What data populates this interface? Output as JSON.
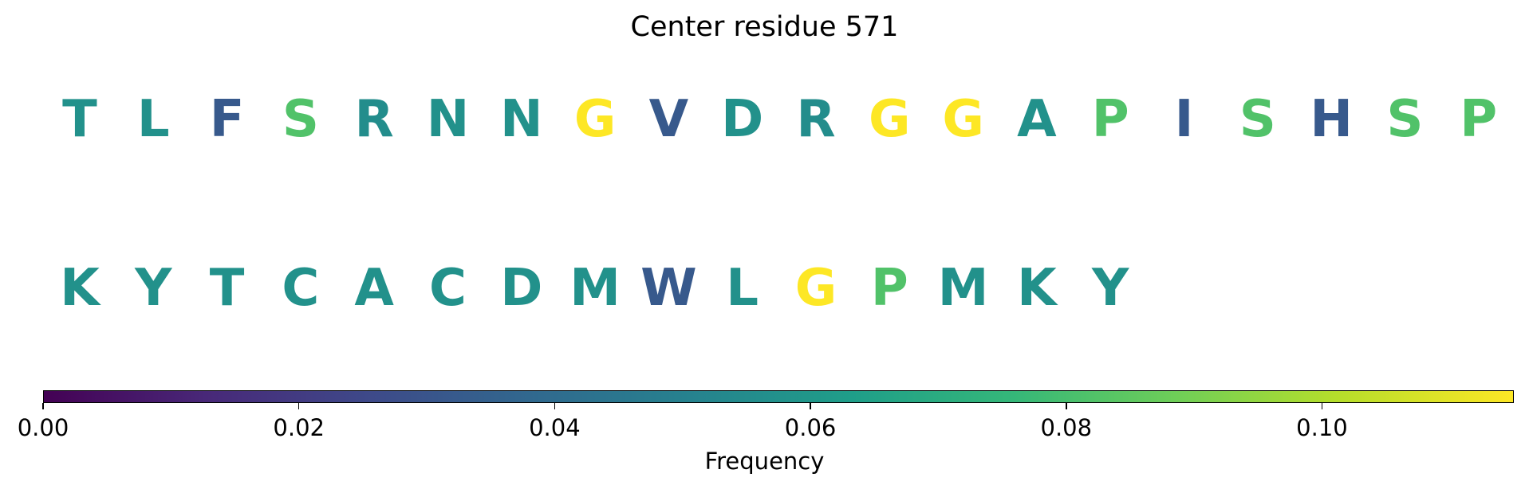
{
  "chart_data": {
    "type": "heatmap",
    "title": "Center residue 571",
    "rows": [
      [
        {
          "residue": "T",
          "frequency": 0.058
        },
        {
          "residue": "L",
          "frequency": 0.058
        },
        {
          "residue": "F",
          "frequency": 0.032
        },
        {
          "residue": "S",
          "frequency": 0.083
        },
        {
          "residue": "R",
          "frequency": 0.056
        },
        {
          "residue": "N",
          "frequency": 0.058
        },
        {
          "residue": "N",
          "frequency": 0.058
        },
        {
          "residue": "G",
          "frequency": 0.115
        },
        {
          "residue": "V",
          "frequency": 0.032
        },
        {
          "residue": "D",
          "frequency": 0.058
        },
        {
          "residue": "R",
          "frequency": 0.056
        },
        {
          "residue": "G",
          "frequency": 0.115
        },
        {
          "residue": "G",
          "frequency": 0.115
        },
        {
          "residue": "A",
          "frequency": 0.058
        },
        {
          "residue": "P",
          "frequency": 0.083
        },
        {
          "residue": "I",
          "frequency": 0.032
        },
        {
          "residue": "S",
          "frequency": 0.083
        },
        {
          "residue": "H",
          "frequency": 0.032
        },
        {
          "residue": "S",
          "frequency": 0.083
        },
        {
          "residue": "P",
          "frequency": 0.083
        }
      ],
      [
        {
          "residue": "K",
          "frequency": 0.058
        },
        {
          "residue": "Y",
          "frequency": 0.058
        },
        {
          "residue": "T",
          "frequency": 0.058
        },
        {
          "residue": "C",
          "frequency": 0.058
        },
        {
          "residue": "A",
          "frequency": 0.058
        },
        {
          "residue": "C",
          "frequency": 0.058
        },
        {
          "residue": "D",
          "frequency": 0.058
        },
        {
          "residue": "M",
          "frequency": 0.058
        },
        {
          "residue": "W",
          "frequency": 0.032
        },
        {
          "residue": "L",
          "frequency": 0.058
        },
        {
          "residue": "G",
          "frequency": 0.115
        },
        {
          "residue": "P",
          "frequency": 0.083
        },
        {
          "residue": "M",
          "frequency": 0.058
        },
        {
          "residue": "K",
          "frequency": 0.058
        },
        {
          "residue": "Y",
          "frequency": 0.058
        }
      ]
    ],
    "colorbar": {
      "label": "Frequency",
      "colormap": "viridis",
      "range": [
        0.0,
        0.115
      ],
      "ticks": [
        0.0,
        0.02,
        0.04,
        0.06,
        0.08,
        0.1
      ],
      "tick_labels": [
        "0.00",
        "0.02",
        "0.04",
        "0.06",
        "0.08",
        "0.10"
      ]
    }
  }
}
